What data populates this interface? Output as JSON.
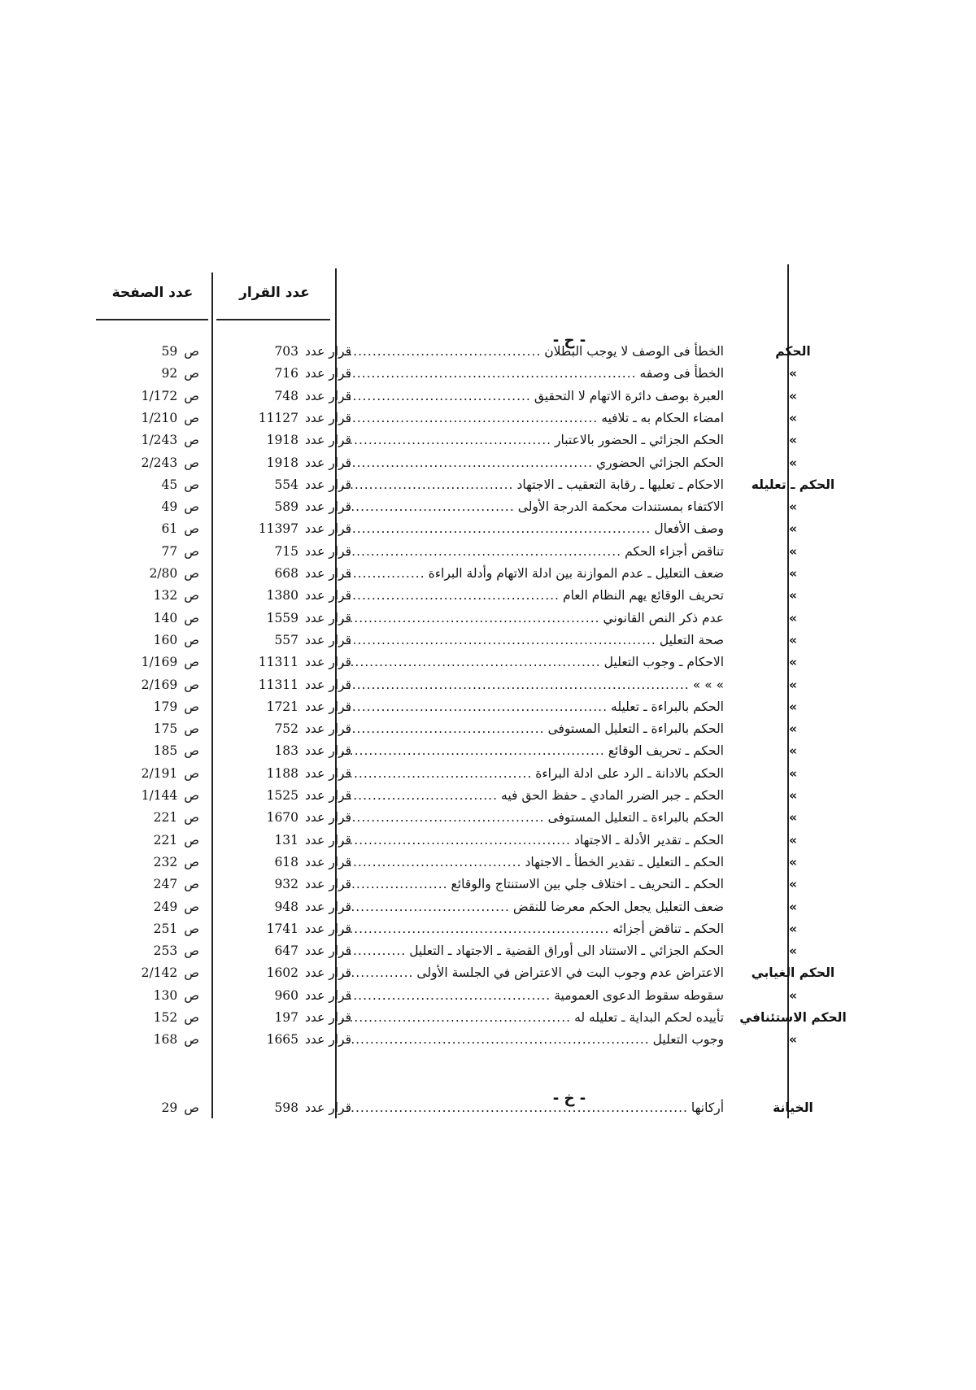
{
  "headers": {
    "decision_col": "عدد القرار",
    "page_col": "عدد الصفحة"
  },
  "labels": {
    "decision_prefix": "قرار عدد",
    "page_prefix": "ص"
  },
  "sections": [
    {
      "letter": "- ح -",
      "rows": [
        {
          "term": "الحكم",
          "desc": "الخطأ فى الوصف لا يوجب البطلان",
          "decision": "703",
          "page": "59"
        },
        {
          "term": "»",
          "desc": "الخطأ فى وصفه",
          "decision": "716",
          "page": "92"
        },
        {
          "term": "»",
          "desc": "العبرة بوصف دائرة الاتهام لا التحقيق",
          "decision": "748",
          "page": "1/172"
        },
        {
          "term": "»",
          "desc": "امضاء الحكام به ـ تلافيه",
          "decision": "11127",
          "page": "1/210"
        },
        {
          "term": "»",
          "desc": "الحكم الجزائي ـ الحضور بالاعتبار",
          "decision": "1918",
          "page": "1/243"
        },
        {
          "term": "»",
          "desc": "الحكم الجزائي الحضوري",
          "decision": "1918",
          "page": "2/243"
        },
        {
          "term": "الحكم ـ تعليله",
          "desc": "الاحكام ـ تعليها ـ رقابة التعقيب ـ الاجتهاد",
          "decision": "554",
          "page": "45"
        },
        {
          "term": "»",
          "desc": "الاكتفاء بمستندات محكمة الدرجة الأولى",
          "decision": "589",
          "page": "49"
        },
        {
          "term": "»",
          "desc": "وصف الأفعال",
          "decision": "11397",
          "page": "61"
        },
        {
          "term": "»",
          "desc": "تناقض أجزاء الحكم",
          "decision": "715",
          "page": "77"
        },
        {
          "term": "»",
          "desc": "ضعف التعليل ـ عدم الموازنة بين ادلة الاتهام وأدلة البراءة",
          "decision": "668",
          "page": "2/80"
        },
        {
          "term": "»",
          "desc": "تحريف الوقائع يهم النظام العام",
          "decision": "1380",
          "page": "132"
        },
        {
          "term": "»",
          "desc": "عدم ذكر النص القانوني",
          "decision": "1559",
          "page": "140"
        },
        {
          "term": "»",
          "desc": "صحة التعليل",
          "decision": "557",
          "page": "160"
        },
        {
          "term": "»",
          "desc": "الاحكام ـ وجوب التعليل",
          "decision": "11311",
          "page": "1/169"
        },
        {
          "term": "»",
          "desc": "»      »      »",
          "decision": "11311",
          "page": "2/169"
        },
        {
          "term": "»",
          "desc": "الحكم بالبراءة ـ تعليله",
          "decision": "1721",
          "page": "179"
        },
        {
          "term": "»",
          "desc": "الحكم بالبراءة ـ التعليل المستوفى",
          "decision": "752",
          "page": "175"
        },
        {
          "term": "»",
          "desc": "الحكم ـ تحريف الوقائع",
          "decision": "183",
          "page": "185"
        },
        {
          "term": "»",
          "desc": "الحكم بالادانة ـ الرد على ادلة البراءة",
          "decision": "1188",
          "page": "2/191"
        },
        {
          "term": "»",
          "desc": "الحكم ـ جبر الضرر المادي ـ حفظ الحق فيه",
          "decision": "1525",
          "page": "1/144"
        },
        {
          "term": "»",
          "desc": "الحكم بالبراءة ـ التعليل المستوفى",
          "decision": "1670",
          "page": "221"
        },
        {
          "term": "»",
          "desc": "الحكم ـ تقدير الأدلة ـ الاجتهاد",
          "decision": "131",
          "page": "221"
        },
        {
          "term": "»",
          "desc": "الحكم ـ التعليل ـ تقدير الخطأ ـ الاجتهاد",
          "decision": "618",
          "page": "232"
        },
        {
          "term": "»",
          "desc": "الحكم ـ التحريف ـ اختلاف جلي بين الاستنتاج والوقائع",
          "decision": "932",
          "page": "247"
        },
        {
          "term": "»",
          "desc": "ضعف التعليل يجعل الحكم معرضا للنقض",
          "decision": "948",
          "page": "249"
        },
        {
          "term": "»",
          "desc": "الحكم ـ تناقض أجزائه",
          "decision": "1741",
          "page": "251"
        },
        {
          "term": "»",
          "desc": "الحكم الجزائي ـ الاستناد الى أوراق القضية ـ الاجتهاد ـ التعليل",
          "decision": "647",
          "page": "253"
        },
        {
          "term": "الحكم الغيابي",
          "desc": "الاعتراض عدم وجوب البت في الاعتراض في الجلسة الأولى",
          "decision": "1602",
          "page": "2/142"
        },
        {
          "term": "»",
          "desc": "سقوطه سقوط الدعوى العمومية",
          "decision": "960",
          "page": "130"
        },
        {
          "term": "الحكم الاستئنافي",
          "desc": "تأييده لحكم البداية ـ تعليله له",
          "decision": "197",
          "page": "152"
        },
        {
          "term": "»",
          "desc": "وجوب التعليل",
          "decision": "1665",
          "page": "168"
        }
      ]
    },
    {
      "letter": "- خ -",
      "rows": [
        {
          "term": "الخيانة",
          "desc": "أركانها",
          "decision": "598",
          "page": "29"
        }
      ]
    }
  ]
}
